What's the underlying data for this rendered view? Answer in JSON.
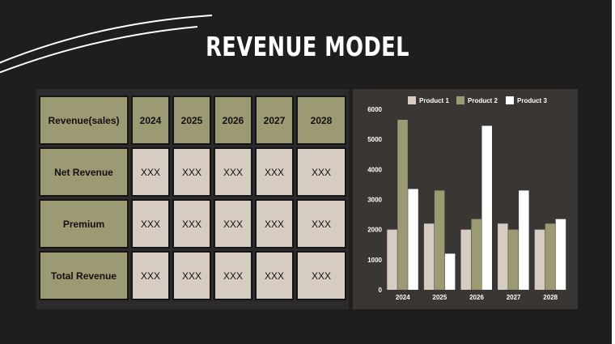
{
  "title": "REVENUE MODEL",
  "table": {
    "header": [
      "Revenue(sales)",
      "2024",
      "2025",
      "2026",
      "2027",
      "2028"
    ],
    "rows": [
      {
        "label": "Net Revenue",
        "cells": [
          "XXX",
          "XXX",
          "XXX",
          "XXX",
          "XXX"
        ]
      },
      {
        "label": "Premium",
        "cells": [
          "XXX",
          "XXX",
          "XXX",
          "XXX",
          "XXX"
        ]
      },
      {
        "label": "Total Revenue",
        "cells": [
          "XXX",
          "XXX",
          "XXX",
          "XXX",
          "XXX"
        ]
      }
    ]
  },
  "colors": {
    "background": "#1e1e1e",
    "olive": "#9b9a72",
    "beige": "#d6ccc1",
    "chart_panel": "#393634",
    "white": "#ffffff"
  },
  "chart_data": {
    "type": "bar",
    "categories": [
      "2024",
      "2025",
      "2026",
      "2027",
      "2028"
    ],
    "series": [
      {
        "name": "Product 1",
        "values": [
          2000,
          2200,
          2000,
          2200,
          2000
        ],
        "color": "#d6ccc1"
      },
      {
        "name": "Product 2",
        "values": [
          5650,
          3300,
          2350,
          2000,
          2200
        ],
        "color": "#9b9a72"
      },
      {
        "name": "Product 3",
        "values": [
          3350,
          1200,
          5450,
          3300,
          2350
        ],
        "color": "#ffffff"
      }
    ],
    "ylim": [
      0,
      6000
    ],
    "yticks": [
      "0",
      "1000",
      "2000",
      "3000",
      "4000",
      "5000",
      "6000"
    ],
    "grid": false,
    "legend": "top"
  }
}
